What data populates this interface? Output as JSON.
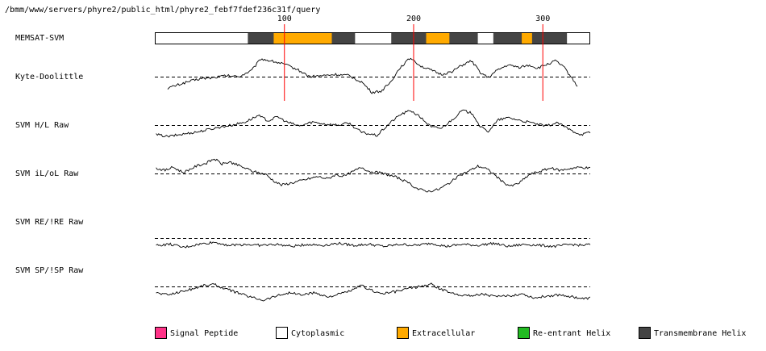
{
  "path": "/bmm/www/servers/phyre2/public_html/phyre2_febf7fdef236c31f/query",
  "chart_data": {
    "type": "line",
    "sequence_length": 337,
    "ruler_ticks": [
      100,
      200,
      300
    ],
    "memsat": {
      "label": "MEMSAT-SVM",
      "segments": [
        {
          "start": 1,
          "end": 73,
          "type": "cytoplasmic"
        },
        {
          "start": 73,
          "end": 93,
          "type": "transmembrane"
        },
        {
          "start": 93,
          "end": 138,
          "type": "extracellular"
        },
        {
          "start": 138,
          "end": 156,
          "type": "transmembrane"
        },
        {
          "start": 156,
          "end": 184,
          "type": "cytoplasmic"
        },
        {
          "start": 184,
          "end": 211,
          "type": "transmembrane"
        },
        {
          "start": 211,
          "end": 229,
          "type": "extracellular"
        },
        {
          "start": 229,
          "end": 251,
          "type": "transmembrane"
        },
        {
          "start": 251,
          "end": 263,
          "type": "cytoplasmic"
        },
        {
          "start": 263,
          "end": 285,
          "type": "transmembrane"
        },
        {
          "start": 285,
          "end": 293,
          "type": "extracellular"
        },
        {
          "start": 293,
          "end": 320,
          "type": "transmembrane"
        },
        {
          "start": 320,
          "end": 337,
          "type": "cytoplasmic"
        }
      ]
    },
    "tracks": [
      {
        "name": "Kyte-Doolittle",
        "start": 10,
        "end": 327,
        "knots": [
          [
            10,
            -0.55
          ],
          [
            15,
            -0.45
          ],
          [
            25,
            -0.25
          ],
          [
            35,
            -0.1
          ],
          [
            45,
            -0.05
          ],
          [
            55,
            0.05
          ],
          [
            65,
            0.0
          ],
          [
            75,
            0.3
          ],
          [
            82,
            0.85
          ],
          [
            90,
            0.75
          ],
          [
            100,
            0.6
          ],
          [
            110,
            0.35
          ],
          [
            120,
            0.0
          ],
          [
            130,
            0.05
          ],
          [
            140,
            0.1
          ],
          [
            150,
            0.05
          ],
          [
            160,
            -0.25
          ],
          [
            168,
            -0.75
          ],
          [
            175,
            -0.7
          ],
          [
            182,
            -0.3
          ],
          [
            190,
            0.45
          ],
          [
            198,
            0.9
          ],
          [
            206,
            0.5
          ],
          [
            214,
            0.3
          ],
          [
            222,
            0.1
          ],
          [
            230,
            0.25
          ],
          [
            238,
            0.55
          ],
          [
            245,
            0.75
          ],
          [
            252,
            0.2
          ],
          [
            258,
            -0.05
          ],
          [
            265,
            0.3
          ],
          [
            273,
            0.55
          ],
          [
            282,
            0.45
          ],
          [
            290,
            0.55
          ],
          [
            296,
            0.4
          ],
          [
            304,
            0.6
          ],
          [
            310,
            0.75
          ],
          [
            316,
            0.5
          ],
          [
            322,
            0.0
          ],
          [
            327,
            -0.45
          ]
        ]
      },
      {
        "name": "SVM H/L Raw",
        "start": 1,
        "end": 337,
        "knots": [
          [
            1,
            -0.45
          ],
          [
            10,
            -0.55
          ],
          [
            20,
            -0.45
          ],
          [
            35,
            -0.3
          ],
          [
            50,
            -0.1
          ],
          [
            60,
            0.0
          ],
          [
            70,
            0.15
          ],
          [
            80,
            0.45
          ],
          [
            88,
            0.2
          ],
          [
            95,
            0.4
          ],
          [
            102,
            0.15
          ],
          [
            112,
            -0.05
          ],
          [
            122,
            0.15
          ],
          [
            132,
            0.05
          ],
          [
            142,
            0.0
          ],
          [
            150,
            0.1
          ],
          [
            160,
            -0.35
          ],
          [
            172,
            -0.5
          ],
          [
            182,
            0.1
          ],
          [
            190,
            0.5
          ],
          [
            198,
            0.7
          ],
          [
            206,
            0.35
          ],
          [
            214,
            -0.1
          ],
          [
            222,
            -0.15
          ],
          [
            230,
            0.25
          ],
          [
            238,
            0.7
          ],
          [
            246,
            0.55
          ],
          [
            252,
            -0.1
          ],
          [
            258,
            -0.3
          ],
          [
            266,
            0.25
          ],
          [
            274,
            0.35
          ],
          [
            284,
            0.2
          ],
          [
            292,
            0.1
          ],
          [
            302,
            -0.05
          ],
          [
            312,
            0.1
          ],
          [
            322,
            -0.25
          ],
          [
            330,
            -0.45
          ],
          [
            337,
            -0.35
          ]
        ]
      },
      {
        "name": "SVM iL/oL Raw",
        "start": 1,
        "end": 337,
        "knots": [
          [
            1,
            0.25
          ],
          [
            8,
            0.15
          ],
          [
            14,
            0.3
          ],
          [
            22,
            0.05
          ],
          [
            32,
            0.35
          ],
          [
            40,
            0.5
          ],
          [
            46,
            0.7
          ],
          [
            52,
            0.45
          ],
          [
            58,
            0.55
          ],
          [
            66,
            0.35
          ],
          [
            76,
            0.1
          ],
          [
            86,
            -0.05
          ],
          [
            92,
            -0.35
          ],
          [
            98,
            -0.55
          ],
          [
            106,
            -0.45
          ],
          [
            116,
            -0.3
          ],
          [
            126,
            -0.15
          ],
          [
            134,
            -0.25
          ],
          [
            140,
            -0.05
          ],
          [
            146,
            -0.15
          ],
          [
            152,
            0.05
          ],
          [
            160,
            0.3
          ],
          [
            166,
            0.1
          ],
          [
            172,
            0.05
          ],
          [
            180,
            -0.05
          ],
          [
            188,
            -0.2
          ],
          [
            196,
            -0.45
          ],
          [
            204,
            -0.75
          ],
          [
            212,
            -0.85
          ],
          [
            220,
            -0.75
          ],
          [
            228,
            -0.45
          ],
          [
            236,
            -0.1
          ],
          [
            244,
            0.15
          ],
          [
            250,
            0.35
          ],
          [
            256,
            0.25
          ],
          [
            262,
            0.0
          ],
          [
            270,
            -0.45
          ],
          [
            276,
            -0.6
          ],
          [
            282,
            -0.45
          ],
          [
            290,
            -0.05
          ],
          [
            298,
            0.1
          ],
          [
            306,
            0.25
          ],
          [
            314,
            0.15
          ],
          [
            322,
            0.25
          ],
          [
            330,
            0.3
          ],
          [
            337,
            0.25
          ]
        ]
      },
      {
        "name": "SVM RE/!RE Raw",
        "start": 1,
        "end": 337,
        "knots": [
          [
            1,
            -0.35
          ],
          [
            12,
            -0.3
          ],
          [
            22,
            -0.45
          ],
          [
            34,
            -0.3
          ],
          [
            46,
            -0.2
          ],
          [
            58,
            -0.35
          ],
          [
            70,
            -0.3
          ],
          [
            82,
            -0.35
          ],
          [
            94,
            -0.3
          ],
          [
            106,
            -0.4
          ],
          [
            118,
            -0.3
          ],
          [
            130,
            -0.35
          ],
          [
            142,
            -0.25
          ],
          [
            154,
            -0.35
          ],
          [
            166,
            -0.3
          ],
          [
            178,
            -0.4
          ],
          [
            190,
            -0.3
          ],
          [
            202,
            -0.35
          ],
          [
            214,
            -0.25
          ],
          [
            226,
            -0.4
          ],
          [
            238,
            -0.3
          ],
          [
            250,
            -0.35
          ],
          [
            262,
            -0.25
          ],
          [
            274,
            -0.4
          ],
          [
            286,
            -0.3
          ],
          [
            298,
            -0.35
          ],
          [
            310,
            -0.4
          ],
          [
            322,
            -0.3
          ],
          [
            330,
            -0.35
          ],
          [
            337,
            -0.3
          ]
        ]
      },
      {
        "name": "SVM SP/!SP Raw",
        "start": 1,
        "end": 337,
        "knots": [
          [
            1,
            -0.3
          ],
          [
            10,
            -0.4
          ],
          [
            20,
            -0.25
          ],
          [
            30,
            -0.1
          ],
          [
            38,
            0.05
          ],
          [
            46,
            0.1
          ],
          [
            54,
            -0.1
          ],
          [
            64,
            -0.3
          ],
          [
            74,
            -0.5
          ],
          [
            84,
            -0.65
          ],
          [
            94,
            -0.45
          ],
          [
            104,
            -0.3
          ],
          [
            114,
            -0.4
          ],
          [
            124,
            -0.3
          ],
          [
            134,
            -0.5
          ],
          [
            144,
            -0.35
          ],
          [
            154,
            -0.15
          ],
          [
            160,
            0.05
          ],
          [
            166,
            -0.15
          ],
          [
            176,
            -0.35
          ],
          [
            186,
            -0.25
          ],
          [
            196,
            -0.1
          ],
          [
            206,
            0.0
          ],
          [
            214,
            0.1
          ],
          [
            222,
            -0.15
          ],
          [
            232,
            -0.35
          ],
          [
            244,
            -0.45
          ],
          [
            254,
            -0.35
          ],
          [
            264,
            -0.5
          ],
          [
            274,
            -0.45
          ],
          [
            284,
            -0.35
          ],
          [
            294,
            -0.55
          ],
          [
            304,
            -0.45
          ],
          [
            314,
            -0.4
          ],
          [
            324,
            -0.5
          ],
          [
            332,
            -0.6
          ],
          [
            337,
            -0.55
          ]
        ]
      }
    ],
    "legend": [
      {
        "key": "signal_peptide",
        "label": "Signal Peptide",
        "color": "#ff3388"
      },
      {
        "key": "cytoplasmic",
        "label": "Cytoplasmic",
        "color": "#ffffff"
      },
      {
        "key": "extracellular",
        "label": "Extracellular",
        "color": "#ffaa00"
      },
      {
        "key": "reentrant",
        "label": "Re-entrant Helix",
        "color": "#22bb22"
      },
      {
        "key": "transmembrane",
        "label": "Transmembrane Helix",
        "color": "#444444"
      }
    ],
    "colors": {
      "cytoplasmic": "#ffffff",
      "extracellular": "#ffaa00",
      "transmembrane": "#444444",
      "marker": "#ff0000",
      "line": "#000000"
    }
  }
}
